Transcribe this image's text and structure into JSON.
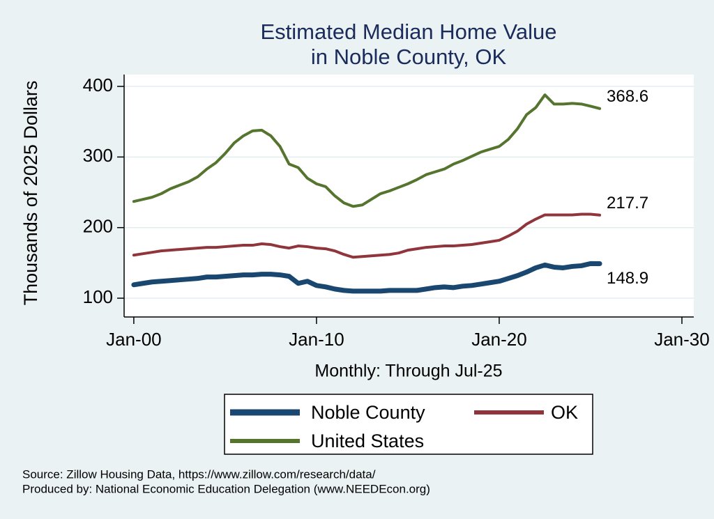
{
  "chart_data": {
    "type": "line",
    "title": [
      "Estimated Median Home Value",
      "in Noble County, OK"
    ],
    "y_label": "Thousands of 2025 Dollars",
    "x_label": "Monthly: Through Jul-25",
    "notes": [
      "Source: Zillow Housing Data, https://www.zillow.com/research/data/",
      "Produced by: National Economic Education Delegation (www.NEEDEcon.org)"
    ],
    "x": [
      2000,
      2000.5,
      2001,
      2001.5,
      2002,
      2002.5,
      2003,
      2003.5,
      2004,
      2004.5,
      2005,
      2005.5,
      2006,
      2006.5,
      2007,
      2007.5,
      2008,
      2008.5,
      2009,
      2009.5,
      2010,
      2010.5,
      2011,
      2011.5,
      2012,
      2012.5,
      2013,
      2013.5,
      2014,
      2014.5,
      2015,
      2015.5,
      2016,
      2016.5,
      2017,
      2017.5,
      2018,
      2018.5,
      2019,
      2019.5,
      2020,
      2020.5,
      2021,
      2021.5,
      2022,
      2022.5,
      2023,
      2023.5,
      2024,
      2024.5,
      2025,
      2025.5
    ],
    "series": [
      {
        "name": "Noble County",
        "color": "#1a476f",
        "width": 7,
        "values": [
          119,
          121,
          123,
          124,
          125,
          126,
          127,
          128,
          130,
          130,
          131,
          132,
          133,
          133,
          134,
          134,
          133,
          131,
          121,
          124,
          118,
          116,
          113,
          111,
          110,
          110,
          110,
          110,
          111,
          111,
          111,
          111,
          113,
          115,
          116,
          115,
          117,
          118,
          120,
          122,
          124,
          128,
          132,
          137,
          143,
          147,
          144,
          143,
          145,
          146,
          149,
          148.9
        ]
      },
      {
        "name": "OK",
        "color": "#90353b",
        "width": 4,
        "values": [
          161,
          163,
          165,
          167,
          168,
          169,
          170,
          171,
          172,
          172,
          173,
          174,
          175,
          175,
          177,
          176,
          173,
          171,
          174,
          173,
          171,
          170,
          167,
          162,
          158,
          159,
          160,
          161,
          162,
          164,
          168,
          170,
          172,
          173,
          174,
          174,
          175,
          176,
          178,
          180,
          182,
          188,
          195,
          205,
          212,
          218,
          218,
          218,
          218,
          219,
          219,
          217.7
        ]
      },
      {
        "name": "United States",
        "color": "#55752f",
        "width": 4,
        "values": [
          237,
          240,
          243,
          248,
          255,
          260,
          265,
          272,
          283,
          292,
          305,
          320,
          330,
          337,
          338,
          330,
          315,
          290,
          285,
          270,
          262,
          258,
          245,
          235,
          230,
          232,
          240,
          248,
          252,
          257,
          262,
          268,
          275,
          279,
          283,
          290,
          295,
          301,
          307,
          311,
          315,
          325,
          340,
          360,
          370,
          388,
          375,
          375,
          376,
          375,
          372,
          368.6
        ]
      }
    ],
    "xlim": [
      1999.47,
      2030.65
    ],
    "ylim": [
      73.4,
      416.8
    ],
    "xticks": [
      {
        "value": 2000,
        "label": "Jan-00"
      },
      {
        "value": 2010,
        "label": "Jan-10"
      },
      {
        "value": 2020,
        "label": "Jan-20"
      },
      {
        "value": 2030,
        "label": "Jan-30"
      }
    ],
    "yticks": [
      100,
      200,
      300,
      400
    ],
    "grid": true
  }
}
